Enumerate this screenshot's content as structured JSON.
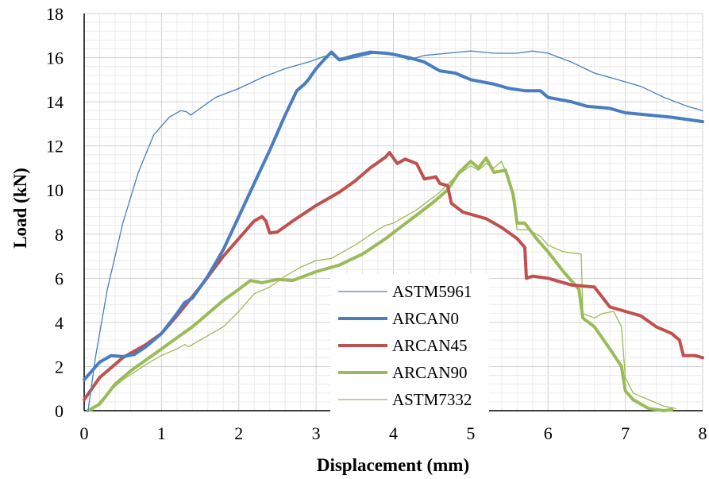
{
  "chart_data": {
    "type": "line",
    "xlabel": "Displacement (mm)",
    "ylabel": "Load (kN)",
    "xlim": [
      0,
      8
    ],
    "ylim": [
      0,
      18
    ],
    "x_ticks": [
      "0",
      "1",
      "2",
      "3",
      "4",
      "5",
      "6",
      "7",
      "8"
    ],
    "y_ticks": [
      "0",
      "2",
      "4",
      "6",
      "8",
      "10",
      "12",
      "14",
      "16",
      "18"
    ],
    "grid": true,
    "legend_position": "center",
    "series": [
      {
        "name": "ASTM5961",
        "color": "#4a7dc0",
        "weight": "thin",
        "points": [
          [
            0.05,
            0
          ],
          [
            0.15,
            2.5
          ],
          [
            0.3,
            5.5
          ],
          [
            0.5,
            8.5
          ],
          [
            0.7,
            10.8
          ],
          [
            0.9,
            12.5
          ],
          [
            1.1,
            13.3
          ],
          [
            1.25,
            13.6
          ],
          [
            1.32,
            13.55
          ],
          [
            1.38,
            13.4
          ],
          [
            1.5,
            13.7
          ],
          [
            1.7,
            14.2
          ],
          [
            2.0,
            14.6
          ],
          [
            2.3,
            15.1
          ],
          [
            2.6,
            15.5
          ],
          [
            2.9,
            15.8
          ],
          [
            3.1,
            16.05
          ],
          [
            3.2,
            16.15
          ],
          [
            3.3,
            15.85
          ],
          [
            3.5,
            16.0
          ],
          [
            3.8,
            16.25
          ],
          [
            4.0,
            16.2
          ],
          [
            4.2,
            15.9
          ],
          [
            4.4,
            16.1
          ],
          [
            4.7,
            16.2
          ],
          [
            5.0,
            16.3
          ],
          [
            5.3,
            16.2
          ],
          [
            5.6,
            16.2
          ],
          [
            5.8,
            16.3
          ],
          [
            6.0,
            16.2
          ],
          [
            6.3,
            15.8
          ],
          [
            6.6,
            15.3
          ],
          [
            6.9,
            15.0
          ],
          [
            7.2,
            14.7
          ],
          [
            7.5,
            14.2
          ],
          [
            7.8,
            13.8
          ],
          [
            8.0,
            13.6
          ]
        ]
      },
      {
        "name": "ARCAN0",
        "color": "#4a7dc0",
        "weight": "thick",
        "points": [
          [
            0.0,
            1.4
          ],
          [
            0.2,
            2.2
          ],
          [
            0.35,
            2.5
          ],
          [
            0.5,
            2.45
          ],
          [
            0.65,
            2.55
          ],
          [
            0.8,
            2.9
          ],
          [
            1.0,
            3.5
          ],
          [
            1.2,
            4.4
          ],
          [
            1.3,
            4.9
          ],
          [
            1.4,
            5.1
          ],
          [
            1.6,
            6.1
          ],
          [
            1.8,
            7.3
          ],
          [
            2.0,
            8.8
          ],
          [
            2.2,
            10.3
          ],
          [
            2.4,
            11.8
          ],
          [
            2.6,
            13.4
          ],
          [
            2.75,
            14.5
          ],
          [
            2.85,
            14.8
          ],
          [
            2.9,
            15.0
          ],
          [
            3.0,
            15.5
          ],
          [
            3.1,
            15.9
          ],
          [
            3.2,
            16.25
          ],
          [
            3.3,
            15.9
          ],
          [
            3.5,
            16.1
          ],
          [
            3.7,
            16.25
          ],
          [
            3.9,
            16.2
          ],
          [
            4.0,
            16.15
          ],
          [
            4.2,
            16.0
          ],
          [
            4.4,
            15.8
          ],
          [
            4.6,
            15.4
          ],
          [
            4.8,
            15.3
          ],
          [
            5.0,
            15.0
          ],
          [
            5.3,
            14.8
          ],
          [
            5.5,
            14.6
          ],
          [
            5.7,
            14.5
          ],
          [
            5.9,
            14.5
          ],
          [
            6.0,
            14.2
          ],
          [
            6.3,
            14.0
          ],
          [
            6.5,
            13.8
          ],
          [
            6.8,
            13.7
          ],
          [
            7.0,
            13.5
          ],
          [
            7.3,
            13.4
          ],
          [
            7.6,
            13.3
          ],
          [
            8.0,
            13.1
          ]
        ]
      },
      {
        "name": "ARCAN45",
        "color": "#c0504d",
        "weight": "thick",
        "points": [
          [
            0.0,
            0.5
          ],
          [
            0.2,
            1.5
          ],
          [
            0.5,
            2.4
          ],
          [
            0.8,
            3.0
          ],
          [
            1.0,
            3.5
          ],
          [
            1.2,
            4.3
          ],
          [
            1.5,
            5.6
          ],
          [
            1.8,
            7.0
          ],
          [
            2.0,
            7.8
          ],
          [
            2.2,
            8.6
          ],
          [
            2.3,
            8.8
          ],
          [
            2.35,
            8.6
          ],
          [
            2.4,
            8.05
          ],
          [
            2.5,
            8.1
          ],
          [
            2.7,
            8.6
          ],
          [
            3.0,
            9.3
          ],
          [
            3.3,
            9.9
          ],
          [
            3.5,
            10.4
          ],
          [
            3.7,
            11.0
          ],
          [
            3.9,
            11.5
          ],
          [
            3.95,
            11.7
          ],
          [
            4.05,
            11.2
          ],
          [
            4.15,
            11.4
          ],
          [
            4.3,
            11.2
          ],
          [
            4.4,
            10.5
          ],
          [
            4.55,
            10.6
          ],
          [
            4.6,
            10.3
          ],
          [
            4.7,
            10.2
          ],
          [
            4.75,
            9.4
          ],
          [
            4.9,
            9.0
          ],
          [
            5.2,
            8.7
          ],
          [
            5.4,
            8.3
          ],
          [
            5.6,
            7.8
          ],
          [
            5.7,
            7.4
          ],
          [
            5.72,
            6.0
          ],
          [
            5.8,
            6.1
          ],
          [
            6.0,
            6.0
          ],
          [
            6.3,
            5.7
          ],
          [
            6.6,
            5.6
          ],
          [
            6.8,
            4.7
          ],
          [
            7.0,
            4.5
          ],
          [
            7.2,
            4.3
          ],
          [
            7.4,
            3.8
          ],
          [
            7.6,
            3.5
          ],
          [
            7.7,
            3.2
          ],
          [
            7.75,
            2.5
          ],
          [
            7.9,
            2.5
          ],
          [
            8.0,
            2.4
          ]
        ]
      },
      {
        "name": "ARCAN90",
        "color": "#9bbb59",
        "weight": "thick",
        "points": [
          [
            0.05,
            0
          ],
          [
            0.2,
            0.3
          ],
          [
            0.4,
            1.2
          ],
          [
            0.6,
            1.8
          ],
          [
            0.8,
            2.3
          ],
          [
            1.0,
            2.8
          ],
          [
            1.2,
            3.3
          ],
          [
            1.4,
            3.8
          ],
          [
            1.6,
            4.4
          ],
          [
            1.8,
            5.0
          ],
          [
            2.0,
            5.5
          ],
          [
            2.15,
            5.9
          ],
          [
            2.3,
            5.8
          ],
          [
            2.5,
            5.95
          ],
          [
            2.7,
            5.9
          ],
          [
            3.0,
            6.3
          ],
          [
            3.3,
            6.6
          ],
          [
            3.6,
            7.1
          ],
          [
            3.9,
            7.8
          ],
          [
            4.2,
            8.6
          ],
          [
            4.5,
            9.4
          ],
          [
            4.7,
            10.0
          ],
          [
            4.85,
            10.8
          ],
          [
            5.0,
            11.3
          ],
          [
            5.1,
            11.0
          ],
          [
            5.2,
            11.45
          ],
          [
            5.3,
            10.8
          ],
          [
            5.45,
            10.9
          ],
          [
            5.55,
            9.8
          ],
          [
            5.6,
            8.5
          ],
          [
            5.7,
            8.5
          ],
          [
            5.85,
            7.8
          ],
          [
            6.0,
            7.2
          ],
          [
            6.2,
            6.3
          ],
          [
            6.4,
            5.5
          ],
          [
            6.45,
            4.2
          ],
          [
            6.6,
            3.8
          ],
          [
            6.8,
            2.8
          ],
          [
            6.95,
            2.0
          ],
          [
            7.0,
            0.9
          ],
          [
            7.1,
            0.5
          ],
          [
            7.3,
            0.1
          ],
          [
            7.5,
            0.0
          ],
          [
            7.6,
            0.05
          ]
        ]
      },
      {
        "name": "ASTM7332",
        "color": "#9bbb59",
        "weight": "thin",
        "points": [
          [
            0.1,
            0
          ],
          [
            0.3,
            0.8
          ],
          [
            0.5,
            1.4
          ],
          [
            0.8,
            2.1
          ],
          [
            1.0,
            2.5
          ],
          [
            1.2,
            2.8
          ],
          [
            1.3,
            3.0
          ],
          [
            1.35,
            2.9
          ],
          [
            1.5,
            3.2
          ],
          [
            1.8,
            3.8
          ],
          [
            2.0,
            4.5
          ],
          [
            2.2,
            5.3
          ],
          [
            2.4,
            5.6
          ],
          [
            2.6,
            6.1
          ],
          [
            2.8,
            6.5
          ],
          [
            3.0,
            6.8
          ],
          [
            3.2,
            6.9
          ],
          [
            3.5,
            7.5
          ],
          [
            3.8,
            8.2
          ],
          [
            3.9,
            8.4
          ],
          [
            4.0,
            8.5
          ],
          [
            4.3,
            9.1
          ],
          [
            4.6,
            9.9
          ],
          [
            4.8,
            10.6
          ],
          [
            5.0,
            11.1
          ],
          [
            5.1,
            10.9
          ],
          [
            5.2,
            11.2
          ],
          [
            5.3,
            11.0
          ],
          [
            5.4,
            11.3
          ],
          [
            5.5,
            10.4
          ],
          [
            5.55,
            9.5
          ],
          [
            5.6,
            8.2
          ],
          [
            5.75,
            8.2
          ],
          [
            5.9,
            7.9
          ],
          [
            6.0,
            7.5
          ],
          [
            6.2,
            7.2
          ],
          [
            6.43,
            7.1
          ],
          [
            6.45,
            4.4
          ],
          [
            6.6,
            4.2
          ],
          [
            6.7,
            4.4
          ],
          [
            6.85,
            4.5
          ],
          [
            6.95,
            3.8
          ],
          [
            7.0,
            1.5
          ],
          [
            7.1,
            0.8
          ],
          [
            7.3,
            0.5
          ],
          [
            7.5,
            0.2
          ],
          [
            7.65,
            0.1
          ]
        ]
      }
    ]
  }
}
